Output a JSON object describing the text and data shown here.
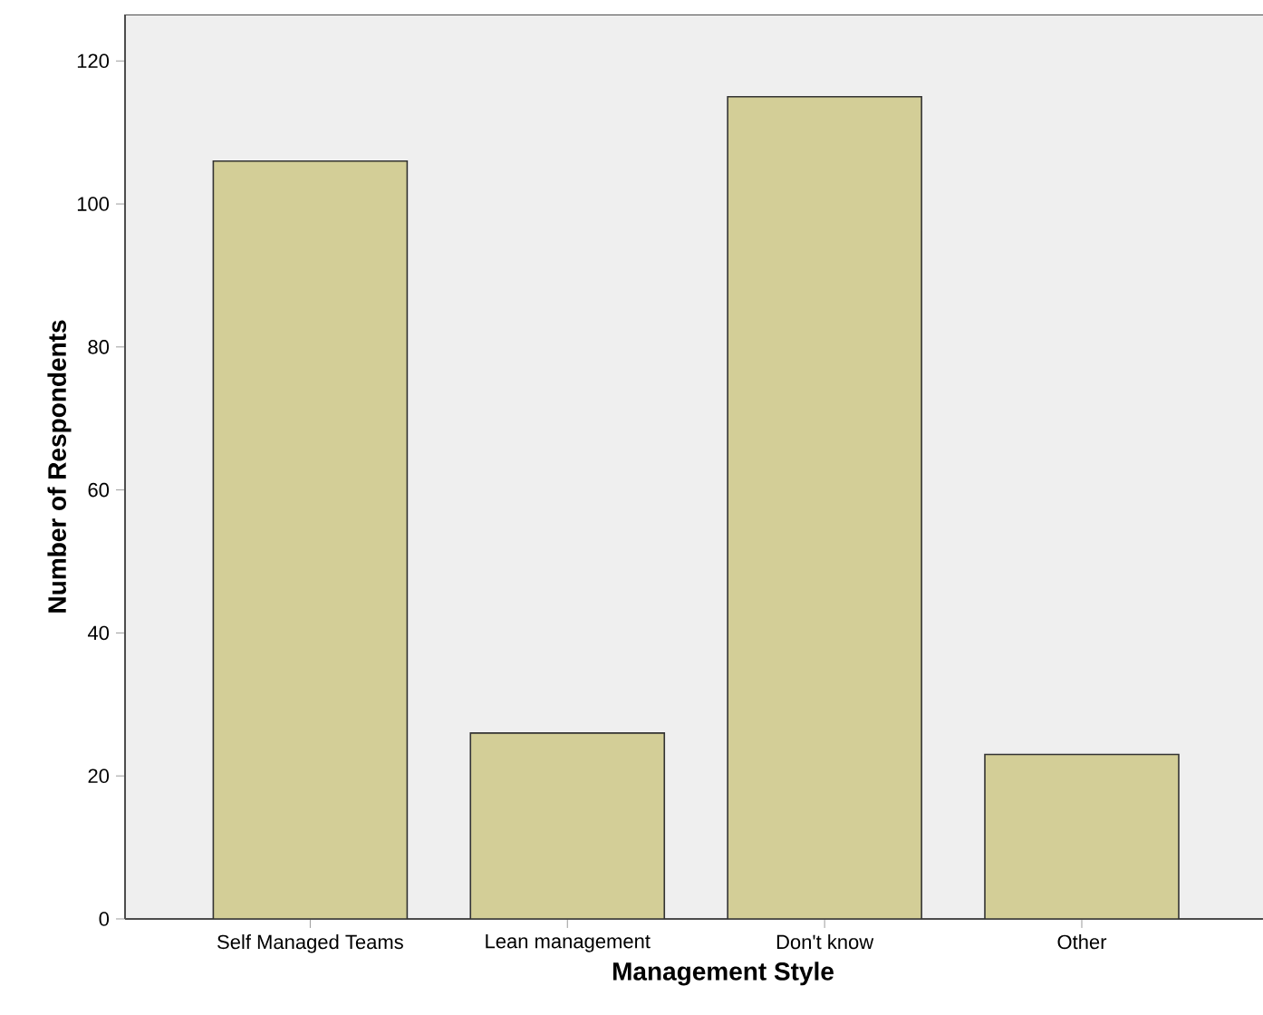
{
  "chart_data": {
    "type": "bar",
    "xlabel": "Management Style",
    "ylabel": "Number of Respondents",
    "categories": [
      "Self Managed Teams",
      "Lean management",
      "Don't know",
      "Other"
    ],
    "values": [
      106,
      26,
      115,
      23
    ],
    "color": "#d3ce97",
    "ylim": [
      0,
      126.5
    ],
    "yticks": [
      0,
      20,
      40,
      60,
      80,
      100,
      120
    ],
    "grid": false
  }
}
